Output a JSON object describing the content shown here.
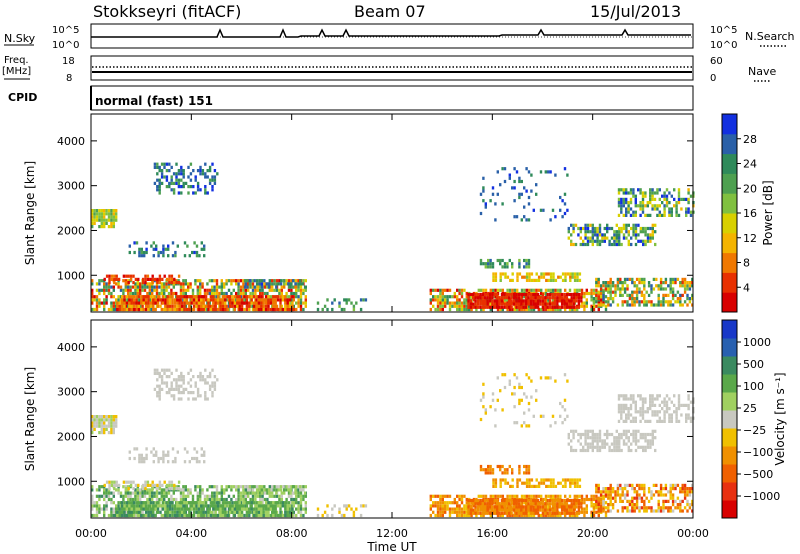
{
  "header": {
    "station": "Stokkseyri (fitACF)",
    "beam": "Beam 07",
    "date": "15/Jul/2013"
  },
  "side_labels": {
    "nsky": "N.Sky",
    "freq": "Freq.",
    "freq_unit": "[MHz]",
    "cpid": "CPID",
    "nsearch": "N.Search",
    "nave": "Nave"
  },
  "cpid_text": "normal (fast) 151",
  "chart_data": [
    {
      "type": "line",
      "name": "noise",
      "y_ticks_left": [
        "10^5",
        "10^0"
      ],
      "y_ticks_right": [
        "10^5",
        "10^0"
      ],
      "series": [
        {
          "name": "N.Sky"
        },
        {
          "name": "N.Search"
        }
      ]
    },
    {
      "type": "line",
      "name": "frequency",
      "y_ticks_left": [
        "18",
        "8"
      ],
      "y_ticks_right": [
        "60",
        "0"
      ],
      "series": [
        {
          "name": "Freq."
        },
        {
          "name": "Nave"
        }
      ]
    },
    {
      "type": "heatmap",
      "name": "power",
      "ylabel": "Slant Range [km]",
      "ylim": [
        180,
        4600
      ],
      "y_ticks": [
        1000,
        2000,
        3000,
        4000
      ],
      "colorbar_label": "Power [dB]",
      "colorbar_ticks": [
        "28",
        "24",
        "20",
        "16",
        "12",
        "8",
        "4"
      ],
      "colorbar_colors": [
        "#1230e0",
        "#2a60a8",
        "#2f8a5a",
        "#4ea050",
        "#80c040",
        "#d8d000",
        "#f4b400",
        "#f07800",
        "#e83000",
        "#d80000"
      ]
    },
    {
      "type": "heatmap",
      "name": "velocity",
      "ylabel": "Slant Range [km]",
      "xlabel": "Time UT",
      "ylim": [
        180,
        4600
      ],
      "y_ticks": [
        1000,
        2000,
        3000,
        4000
      ],
      "x_ticks": [
        "00:00",
        "04:00",
        "08:00",
        "12:00",
        "16:00",
        "20:00",
        "00:00"
      ],
      "colorbar_label": "Velocity [m s⁻¹]",
      "colorbar_ticks": [
        "1000",
        "500",
        "100",
        "25",
        "−25",
        "−100",
        "−500",
        "−1000"
      ],
      "colorbar_colors": [
        "#1838c8",
        "#2860b0",
        "#3a8a60",
        "#5aa84a",
        "#a0d060",
        "#c8c8c0",
        "#f0c000",
        "#f09000",
        "#f06000",
        "#e83010",
        "#d80000"
      ]
    }
  ]
}
